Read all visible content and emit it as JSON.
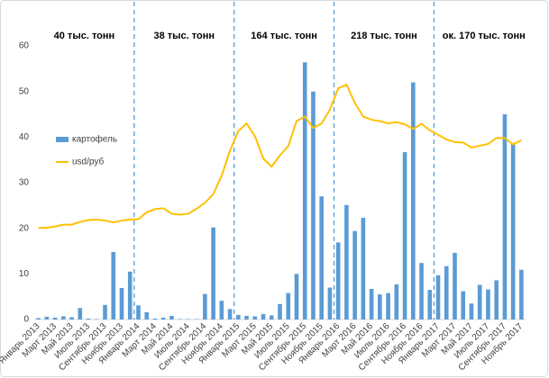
{
  "chart_data": {
    "type": "bar_line",
    "annotations": [
      "40 тыс. тонн",
      "38 тыс. тонн",
      "164 тыс. тонн",
      "218 тыс. тонн",
      "ок. 170 тыс. тонн"
    ],
    "categories": [
      "Январь 2013",
      null,
      "Март 2013",
      null,
      "Май 2013",
      null,
      "Июль 2013",
      null,
      "Сентябрь 2013",
      null,
      "Ноябрь 2013",
      null,
      "Январь 2014",
      null,
      "Март 2014",
      null,
      "Май 2014",
      null,
      "Июль 2014",
      null,
      "Сентябрь 2014",
      null,
      "Ноябрь 2014",
      null,
      "Январь 2015",
      null,
      "Март 2015",
      null,
      "Май 2015",
      null,
      "Июль 2015",
      null,
      "Сентябрь 2015",
      null,
      "Ноябрь 2015",
      null,
      "Январь 2016",
      null,
      "Март 2016",
      null,
      "Май 2016",
      null,
      "Июль 2016",
      null,
      "Сентябрь 2016",
      null,
      "Ноябрь 2016",
      null,
      "Январь 2017",
      null,
      "Март 2017",
      null,
      "Май 2017",
      null,
      "Июль 2017",
      null,
      "Сентябрь 2017",
      null,
      "Ноябрь 2017"
    ],
    "series": [
      {
        "name": "картофель",
        "type": "bar",
        "color": "#5b9bd5",
        "values": [
          0.3,
          0.6,
          0.4,
          0.7,
          0.5,
          2.5,
          0.2,
          0.1,
          3.2,
          14.8,
          6.9,
          10.5,
          3.1,
          1.6,
          0.2,
          0.4,
          0.8,
          0.1,
          0.1,
          0.1,
          5.6,
          20.2,
          4.1,
          2.3,
          1.0,
          0.8,
          0.7,
          1.2,
          0.9,
          3.4,
          5.8,
          10.0,
          56.4,
          50.0,
          27.0,
          7.0,
          16.9,
          25.1,
          19.4,
          22.3,
          6.7,
          5.5,
          5.8,
          7.7,
          36.7,
          52.0,
          12.4,
          6.5,
          9.7,
          11.7,
          14.6,
          6.2,
          3.5,
          7.6,
          6.6,
          8.6,
          45.0,
          38.5,
          10.9
        ]
      },
      {
        "name": "usd/руб",
        "type": "line",
        "color": "#ffc000",
        "values": [
          20.1,
          20.1,
          20.4,
          20.8,
          20.8,
          21.4,
          21.8,
          21.9,
          21.7,
          21.3,
          21.7,
          21.9,
          22.0,
          23.5,
          24.2,
          24.4,
          23.2,
          23.0,
          23.2,
          24.3,
          25.6,
          27.5,
          31.5,
          37.0,
          41.3,
          43.0,
          40.2,
          35.3,
          33.5,
          36.0,
          38.0,
          43.5,
          44.5,
          42.0,
          43.0,
          46.0,
          50.7,
          51.5,
          47.5,
          44.5,
          43.8,
          43.5,
          43.0,
          43.3,
          42.8,
          41.8,
          42.9,
          41.5,
          40.5,
          39.5,
          38.9,
          38.8,
          37.7,
          38.1,
          38.5,
          39.8,
          39.8,
          38.4,
          39.3
        ]
      }
    ],
    "ylim": [
      0,
      60
    ],
    "yticks": [
      0,
      10,
      20,
      30,
      40,
      50,
      60
    ]
  }
}
